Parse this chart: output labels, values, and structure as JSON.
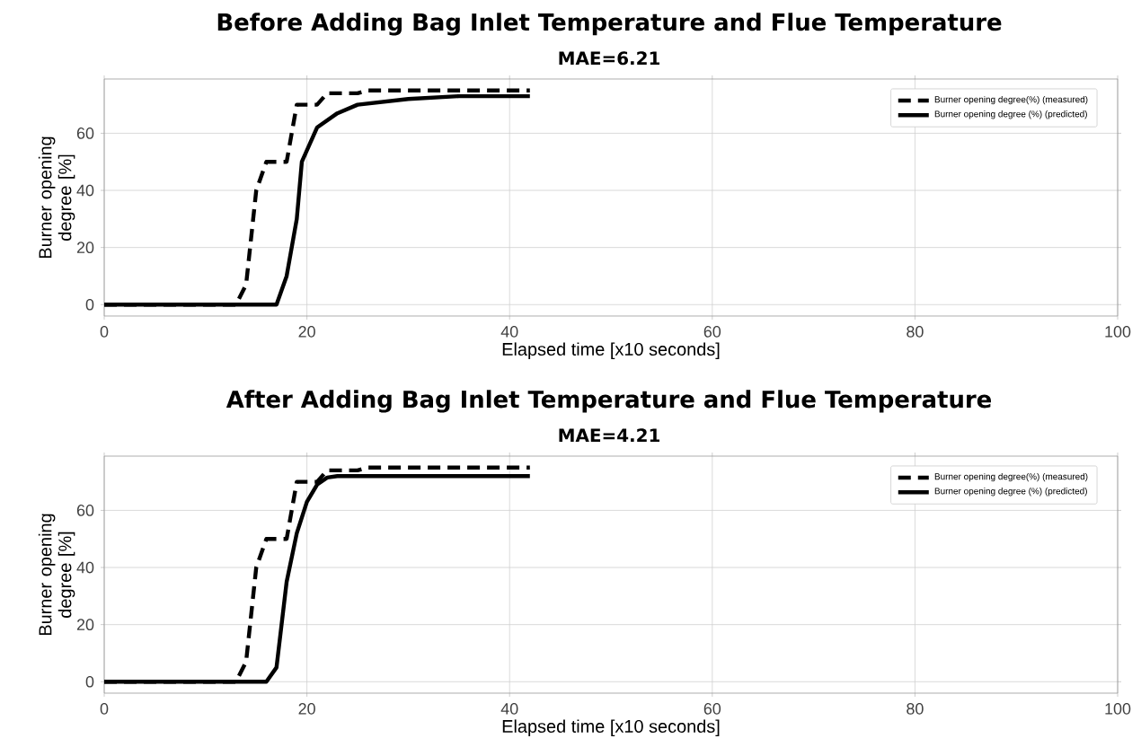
{
  "chart_data": [
    {
      "type": "line",
      "title": "Before Adding Bag Inlet Temperature and Flue Temperature",
      "subtitle": "MAE=6.21",
      "xlabel": "Elapsed time [x10 seconds]",
      "ylabel": "Burner opening degree [%]",
      "xlim": [
        0,
        100
      ],
      "ylim": [
        -4,
        79
      ],
      "xticks": [
        0,
        20,
        40,
        60,
        80,
        100
      ],
      "yticks": [
        0,
        20,
        40,
        60
      ],
      "grid": true,
      "legend": "top right",
      "series": [
        {
          "name": "Burner opening degree(%) (measured)",
          "color": "#000000",
          "line_style": "dashed",
          "x": [
            0,
            13,
            14,
            15,
            16,
            18,
            19,
            21,
            22,
            25,
            26,
            42
          ],
          "values": [
            0,
            0,
            7,
            40,
            50,
            50,
            70,
            70,
            74,
            74,
            75,
            75
          ]
        },
        {
          "name": "Burner opening degree (%) (predicted)",
          "color": "#000000",
          "line_style": "solid",
          "x": [
            0,
            17,
            18,
            19,
            19.5,
            21,
            23,
            25,
            30,
            35,
            42
          ],
          "values": [
            0,
            0,
            10,
            30,
            50,
            62,
            67,
            70,
            72,
            73,
            73
          ]
        }
      ]
    },
    {
      "type": "line",
      "title": "After Adding Bag Inlet Temperature and Flue Temperature",
      "subtitle": "MAE=4.21",
      "xlabel": "Elapsed time [x10 seconds]",
      "ylabel": "Burner opening degree [%]",
      "xlim": [
        0,
        100
      ],
      "ylim": [
        -4,
        79
      ],
      "xticks": [
        0,
        20,
        40,
        60,
        80,
        100
      ],
      "yticks": [
        0,
        20,
        40,
        60
      ],
      "grid": true,
      "legend": "top right",
      "series": [
        {
          "name": "Burner opening degree(%) (measured)",
          "color": "#000000",
          "line_style": "dashed",
          "x": [
            0,
            13,
            14,
            15,
            16,
            18,
            19,
            21,
            22,
            25,
            26,
            42
          ],
          "values": [
            0,
            0,
            7,
            40,
            50,
            50,
            70,
            70,
            74,
            74,
            75,
            75
          ]
        },
        {
          "name": "Burner opening degree (%) (predicted)",
          "color": "#000000",
          "line_style": "solid",
          "x": [
            0,
            16,
            17,
            18,
            19,
            20,
            21,
            22,
            23,
            42
          ],
          "values": [
            0,
            0,
            5,
            35,
            52,
            63,
            69,
            71.5,
            72,
            72
          ]
        }
      ]
    }
  ]
}
